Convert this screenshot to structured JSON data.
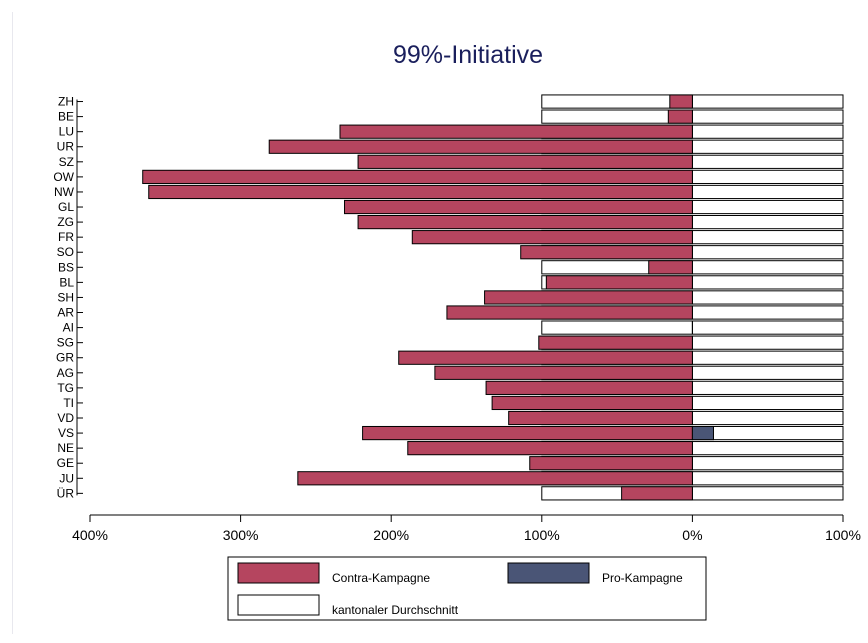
{
  "chart_data": {
    "type": "bar",
    "orientation": "horizontal",
    "title": "99%-Initiative",
    "categories": [
      "ZH",
      "BE",
      "LU",
      "UR",
      "SZ",
      "OW",
      "NW",
      "GL",
      "ZG",
      "FR",
      "SO",
      "BS",
      "BL",
      "SH",
      "AR",
      "AI",
      "SG",
      "GR",
      "AG",
      "TG",
      "TI",
      "VD",
      "VS",
      "NE",
      "GE",
      "JU",
      "ÜR"
    ],
    "x_axis": {
      "ticks": [
        -400,
        -300,
        -200,
        -100,
        0,
        100
      ],
      "tick_labels": [
        "400%",
        "300%",
        "200%",
        "100%",
        "0%",
        "100%"
      ],
      "range": [
        -400,
        100
      ]
    },
    "series": [
      {
        "name": "Contra-Kampagne",
        "color": "#b5455f",
        "values": [
          -15,
          -16,
          -234,
          -281,
          -222,
          -365,
          -361,
          -231,
          -222,
          -186,
          -114,
          -29,
          -97,
          -138,
          -163,
          0,
          -102,
          -195,
          -171,
          -137,
          -133,
          -122,
          -219,
          -189,
          -108,
          -262,
          -47
        ]
      },
      {
        "name": "Pro-Kampagne",
        "color": "#4a5576",
        "values": [
          0,
          0,
          0,
          0,
          0,
          0,
          0,
          0,
          0,
          0,
          0,
          0,
          0,
          0,
          0,
          0,
          0,
          0,
          0,
          0,
          0,
          0,
          14,
          0,
          0,
          0,
          0
        ]
      },
      {
        "name": "kantonaler Durchschnitt",
        "color": "#ffffff",
        "range": [
          -100,
          100
        ]
      }
    ],
    "legend": {
      "placement": "bottom-center",
      "entries": [
        "Contra-Kampagne",
        "Pro-Kampagne",
        "kantonaler Durchschnitt"
      ]
    },
    "grid": false
  }
}
